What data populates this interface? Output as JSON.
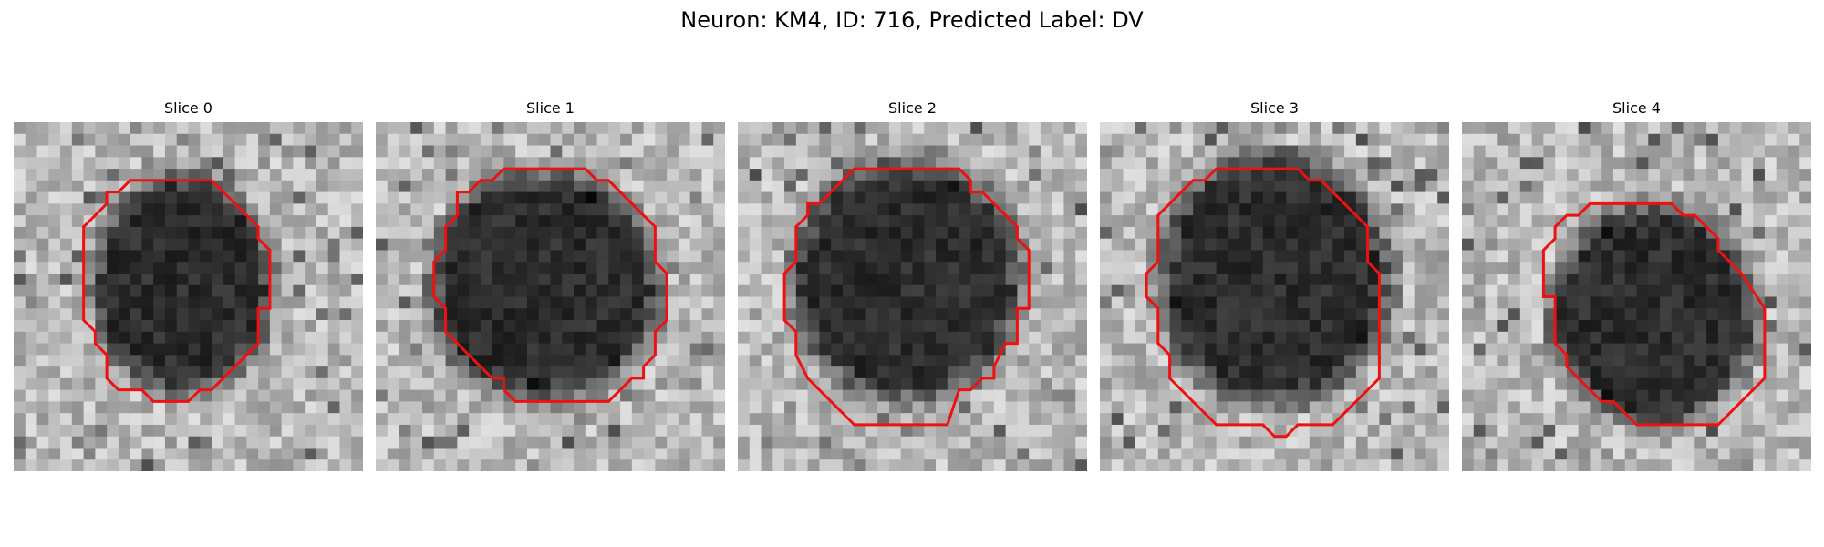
{
  "figure": {
    "title": "Neuron: KM4, ID: 716, Predicted Label: DV"
  },
  "colors": {
    "contour": "#ee1111",
    "background": "#ffffff"
  },
  "panels": [
    {
      "title": "Slice 0",
      "content": "grayscale microscopy slice, dark cell body outlined by red polygon contour"
    },
    {
      "title": "Slice 1",
      "content": "grayscale microscopy slice, dark cell body outlined by red polygon contour"
    },
    {
      "title": "Slice 2",
      "content": "grayscale microscopy slice, dark cell body outlined by red polygon contour"
    },
    {
      "title": "Slice 3",
      "content": "grayscale microscopy slice, dark cell body outlined by red polygon contour"
    },
    {
      "title": "Slice 4",
      "content": "grayscale microscopy slice, dark cell body outlined by red polygon contour"
    }
  ]
}
